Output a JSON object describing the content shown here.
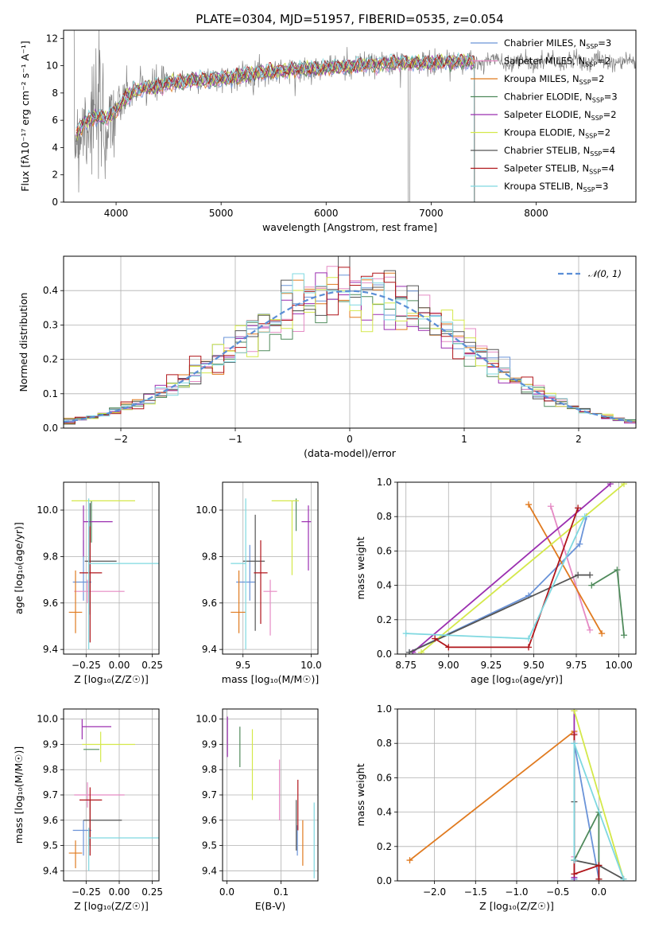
{
  "figure_title": "PLATE=0304, MJD=51957, FIBERID=0535, z=0.054",
  "models": [
    {
      "name": "Chabrier MILES, N",
      "nssp": "=3",
      "color": "#6a93d8"
    },
    {
      "name": "Salpeter MILES, N",
      "nssp": "=2",
      "color": "#e58ac4"
    },
    {
      "name": "Kroupa MILES, N",
      "nssp": "=2",
      "color": "#e07a1f"
    },
    {
      "name": "Chabrier ELODIE, N",
      "nssp": "=3",
      "color": "#4f8a5b"
    },
    {
      "name": "Salpeter ELODIE, N",
      "nssp": "=2",
      "color": "#9b2fb0"
    },
    {
      "name": "Kroupa ELODIE, N",
      "nssp": "=2",
      "color": "#d4e84a"
    },
    {
      "name": "Chabrier STELIB, N",
      "nssp": "=4",
      "color": "#555555"
    },
    {
      "name": "Salpeter STELIB, N",
      "nssp": "=4",
      "color": "#b0151a"
    },
    {
      "name": "Kroupa STELIB, N",
      "nssp": "=3",
      "color": "#7fd8e0"
    }
  ],
  "chart_data": [
    {
      "type": "line",
      "id": "spectrum",
      "xlabel": "wavelength [Angstrom, rest frame]",
      "ylabel": "Flux [fλ10⁻¹⁷ erg cm⁻² s⁻¹ A⁻¹]",
      "xlim": [
        3500,
        8950
      ],
      "ylim": [
        0,
        12.6
      ],
      "xticks": [
        4000,
        5000,
        6000,
        7000,
        8000
      ],
      "yticks": [
        0,
        2,
        4,
        6,
        8,
        10,
        12
      ],
      "data_color": "#808080",
      "model_continuum": {
        "x": [
          3620,
          3700,
          3800,
          3900,
          4000,
          4100,
          4200,
          4300,
          4400,
          4500,
          4700,
          4900,
          5100,
          5300,
          5500,
          5700,
          5900,
          6100,
          6300,
          6500,
          6700,
          6900,
          7100,
          7300,
          7410
        ],
        "y": [
          4.9,
          5.9,
          6.3,
          6.1,
          6.7,
          7.7,
          8.2,
          8.4,
          8.5,
          8.7,
          8.9,
          9.0,
          9.1,
          9.4,
          9.6,
          9.7,
          9.8,
          9.9,
          10.0,
          10.1,
          10.2,
          10.2,
          10.25,
          10.3,
          10.3
        ]
      }
    },
    {
      "type": "histogram",
      "id": "residuals",
      "xlabel": "(data-model)/error",
      "ylabel": "Normed distribution",
      "xlim": [
        -2.5,
        2.5
      ],
      "ylim": [
        0,
        0.5
      ],
      "xticks": [
        -2,
        -1,
        0,
        1,
        2
      ],
      "yticks": [
        0.0,
        0.1,
        0.2,
        0.3,
        0.4
      ],
      "bin_width": 0.1,
      "legend": "𝒩(0, 1)",
      "legend_position": "upper right",
      "gaussian_color": "#5b8ed6"
    },
    {
      "type": "errorbar",
      "id": "age_vs_Z",
      "xlabel": "Z [log₁₀(Z/Z☉)]",
      "ylabel": "age  [log₁₀(age/yr)]",
      "xlim": [
        -0.42,
        0.3
      ],
      "ylim": [
        9.38,
        10.12
      ],
      "xticks": [
        -0.25,
        0.0,
        0.25
      ],
      "yticks": [
        9.4,
        9.6,
        9.8,
        10.0
      ],
      "points": [
        {
          "x": -0.27,
          "y": 9.69,
          "xerr": [
            0.08,
            0.06
          ],
          "yerr": [
            0.08,
            0.18
          ]
        },
        {
          "x": -0.24,
          "y": 9.65,
          "xerr": [
            0.1,
            0.28
          ],
          "yerr": [
            0.05,
            0.05
          ]
        },
        {
          "x": -0.33,
          "y": 9.56,
          "xerr": [
            0.05,
            0.05
          ],
          "yerr": [
            0.09,
            0.18
          ]
        },
        {
          "x": -0.21,
          "y": 9.95,
          "xerr": [
            0.0,
            0.0
          ],
          "yerr": [
            0.09,
            0.09
          ]
        },
        {
          "x": -0.27,
          "y": 9.95,
          "xerr": [
            0.0,
            0.22
          ],
          "yerr": [
            0.15,
            0.07
          ]
        },
        {
          "x": -0.14,
          "y": 10.04,
          "xerr": [
            0.22,
            0.26
          ],
          "yerr": [
            0.0,
            0.0
          ]
        },
        {
          "x": -0.22,
          "y": 9.78,
          "xerr": [
            0.04,
            0.2
          ],
          "yerr": [
            0.23,
            0.25
          ]
        },
        {
          "x": -0.22,
          "y": 9.73,
          "xerr": [
            0.08,
            0.09
          ],
          "yerr": [
            0.3,
            0.2
          ]
        },
        {
          "x": -0.23,
          "y": 9.77,
          "xerr": [
            0.0,
            0.53
          ],
          "yerr": [
            0.37,
            0.28
          ]
        }
      ]
    },
    {
      "type": "errorbar",
      "id": "age_vs_mass",
      "xlabel": "mass [log₁₀(M/M☉)]",
      "ylabel": "",
      "xlim": [
        9.35,
        10.05
      ],
      "ylim": [
        9.38,
        10.12
      ],
      "xticks": [
        9.5,
        10.0
      ],
      "yticks": [
        9.4,
        9.6,
        9.8,
        10.0
      ],
      "points": [
        {
          "x": 9.55,
          "y": 9.69,
          "xerr": [
            0.1,
            0.04
          ],
          "yerr": [
            0.08,
            0.16
          ]
        },
        {
          "x": 9.7,
          "y": 9.65,
          "xerr": [
            0.05,
            0.05
          ],
          "yerr": [
            0.19,
            0.05
          ]
        },
        {
          "x": 9.47,
          "y": 9.56,
          "xerr": [
            0.06,
            0.05
          ],
          "yerr": [
            0.09,
            0.18
          ]
        },
        {
          "x": 9.89,
          "y": 9.95,
          "xerr": [
            0.0,
            0.0
          ],
          "yerr": [
            0.04,
            0.1
          ]
        },
        {
          "x": 9.98,
          "y": 9.95,
          "xerr": [
            0.05,
            0.02
          ],
          "yerr": [
            0.21,
            0.07
          ]
        },
        {
          "x": 9.86,
          "y": 10.04,
          "xerr": [
            0.15,
            0.05
          ],
          "yerr": [
            0.32,
            0.0
          ]
        },
        {
          "x": 9.59,
          "y": 9.78,
          "xerr": [
            0.09,
            0.07
          ],
          "yerr": [
            0.3,
            0.2
          ]
        },
        {
          "x": 9.63,
          "y": 9.73,
          "xerr": [
            0.05,
            0.05
          ],
          "yerr": [
            0.22,
            0.14
          ]
        },
        {
          "x": 9.52,
          "y": 9.77,
          "xerr": [
            0.11,
            0.0
          ],
          "yerr": [
            0.37,
            0.28
          ]
        }
      ]
    },
    {
      "type": "line",
      "id": "massweight_vs_age",
      "xlabel": "age  [log₁₀(age/yr)]",
      "ylabel": "mass weight",
      "xlim": [
        8.7,
        10.1
      ],
      "ylim": [
        0,
        1.0
      ],
      "xticks": [
        8.75,
        9.0,
        9.25,
        9.5,
        9.75,
        10.0
      ],
      "yticks": [
        0.0,
        0.2,
        0.4,
        0.6,
        0.8,
        1.0
      ],
      "series": [
        {
          "x": [
            8.77,
            9.47,
            9.77,
            9.81
          ],
          "y": [
            0.01,
            0.34,
            0.64,
            0.8
          ]
        },
        {
          "x": [
            9.6,
            9.83
          ],
          "y": [
            0.86,
            0.14
          ]
        },
        {
          "x": [
            9.47,
            9.9
          ],
          "y": [
            0.87,
            0.12
          ]
        },
        {
          "x": [
            9.84,
            9.99,
            10.03
          ],
          "y": [
            0.4,
            0.49,
            0.11
          ]
        },
        {
          "x": [
            8.79,
            9.95
          ],
          "y": [
            0.01,
            0.99
          ]
        },
        {
          "x": [
            8.84,
            10.03
          ],
          "y": [
            0.01,
            0.99
          ]
        },
        {
          "x": [
            8.77,
            9.76,
            9.83
          ],
          "y": [
            0.01,
            0.46,
            0.46
          ]
        },
        {
          "x": [
            8.92,
            9.0,
            9.47,
            9.76
          ],
          "y": [
            0.09,
            0.04,
            0.04,
            0.85
          ]
        },
        {
          "x": [
            8.75,
            9.47,
            9.8
          ],
          "y": [
            0.12,
            0.09,
            0.8
          ]
        }
      ]
    },
    {
      "type": "errorbar",
      "id": "mass_vs_Z",
      "xlabel": "Z [log₁₀(Z/Z☉)]",
      "ylabel": "mass [log₁₀(M/M☉)]",
      "xlim": [
        -0.42,
        0.3
      ],
      "ylim": [
        9.36,
        10.04
      ],
      "xticks": [
        -0.25,
        0.0,
        0.25
      ],
      "yticks": [
        9.4,
        9.5,
        9.6,
        9.7,
        9.8,
        9.9,
        10.0
      ],
      "points": [
        {
          "x": -0.27,
          "y": 9.56,
          "xerr": [
            0.08,
            0.06
          ],
          "yerr": [
            0.1,
            0.04
          ]
        },
        {
          "x": -0.24,
          "y": 9.7,
          "xerr": [
            0.1,
            0.28
          ],
          "yerr": [
            0.05,
            0.05
          ]
        },
        {
          "x": -0.33,
          "y": 9.47,
          "xerr": [
            0.05,
            0.05
          ],
          "yerr": [
            0.06,
            0.05
          ]
        },
        {
          "x": -0.21,
          "y": 9.88,
          "xerr": [
            0.06,
            0.06
          ],
          "yerr": [
            0.0,
            0.0
          ]
        },
        {
          "x": -0.28,
          "y": 9.97,
          "xerr": [
            0.0,
            0.22
          ],
          "yerr": [
            0.05,
            0.03
          ]
        },
        {
          "x": -0.14,
          "y": 9.9,
          "xerr": [
            0.14,
            0.26
          ],
          "yerr": [
            0.07,
            0.05
          ]
        },
        {
          "x": -0.22,
          "y": 9.6,
          "xerr": [
            0.05,
            0.24
          ],
          "yerr": [
            0.1,
            0.08
          ]
        },
        {
          "x": -0.22,
          "y": 9.68,
          "xerr": [
            0.08,
            0.09
          ],
          "yerr": [
            0.22,
            0.05
          ]
        },
        {
          "x": -0.23,
          "y": 9.53,
          "xerr": [
            0.0,
            0.53
          ],
          "yerr": [
            0.13,
            0.04
          ]
        }
      ]
    },
    {
      "type": "errorbar",
      "id": "mass_vs_ebv",
      "xlabel": "E(B-V)",
      "ylabel": "",
      "xlim": [
        -0.008,
        0.168
      ],
      "ylim": [
        9.36,
        10.04
      ],
      "xticks": [
        0.0,
        0.1
      ],
      "yticks": [
        9.4,
        9.5,
        9.6,
        9.7,
        9.8,
        9.9,
        10.0
      ],
      "points": [
        {
          "x": 0.13,
          "y": 9.52,
          "yerr": [
            0.06,
            0.06
          ]
        },
        {
          "x": 0.097,
          "y": 9.72,
          "yerr": [
            0.12,
            0.12
          ]
        },
        {
          "x": 0.14,
          "y": 9.51,
          "yerr": [
            0.09,
            0.09
          ]
        },
        {
          "x": 0.024,
          "y": 9.89,
          "yerr": [
            0.08,
            0.08
          ]
        },
        {
          "x": 0.001,
          "y": 9.93,
          "yerr": [
            0.08,
            0.08
          ]
        },
        {
          "x": 0.047,
          "y": 9.82,
          "yerr": [
            0.14,
            0.14
          ]
        },
        {
          "x": 0.128,
          "y": 9.58,
          "yerr": [
            0.1,
            0.1
          ]
        },
        {
          "x": 0.131,
          "y": 9.66,
          "yerr": [
            0.1,
            0.1
          ]
        },
        {
          "x": 0.161,
          "y": 9.52,
          "yerr": [
            0.15,
            0.15
          ]
        }
      ]
    },
    {
      "type": "line",
      "id": "massweight_vs_Z",
      "xlabel": "Z [log₁₀(Z/Z☉)]",
      "ylabel": "mass weight",
      "xlim": [
        -2.45,
        0.45
      ],
      "ylim": [
        0,
        1.0
      ],
      "xticks": [
        -2.0,
        -1.5,
        -1.0,
        -0.5,
        0.0
      ],
      "yticks": [
        0.0,
        0.2,
        0.4,
        0.6,
        0.8,
        1.0
      ],
      "series": [
        {
          "x": [
            -0.3,
            -0.3,
            0.0
          ],
          "y": [
            0.01,
            0.8,
            0.01
          ]
        },
        {
          "x": [
            -0.3,
            -0.3
          ],
          "y": [
            0.86,
            0.14
          ]
        },
        {
          "x": [
            -2.3,
            -0.3
          ],
          "y": [
            0.12,
            0.87
          ]
        },
        {
          "x": [
            -0.3,
            0.0,
            0.0
          ],
          "y": [
            0.12,
            0.4,
            0.01
          ]
        },
        {
          "x": [
            -0.3,
            -0.3
          ],
          "y": [
            0.99,
            0.02
          ]
        },
        {
          "x": [
            -0.3,
            0.3
          ],
          "y": [
            0.99,
            0.01
          ]
        },
        {
          "x": [
            -0.3,
            -0.3,
            0.0,
            0.3
          ],
          "y": [
            0.46,
            0.12,
            0.09,
            0.01
          ]
        },
        {
          "x": [
            -0.3,
            -0.3,
            0.0,
            0.0
          ],
          "y": [
            0.85,
            0.04,
            0.09,
            0.01
          ]
        },
        {
          "x": [
            -0.3,
            -0.3,
            0.3
          ],
          "y": [
            0.12,
            0.8,
            0.01
          ]
        }
      ]
    }
  ]
}
